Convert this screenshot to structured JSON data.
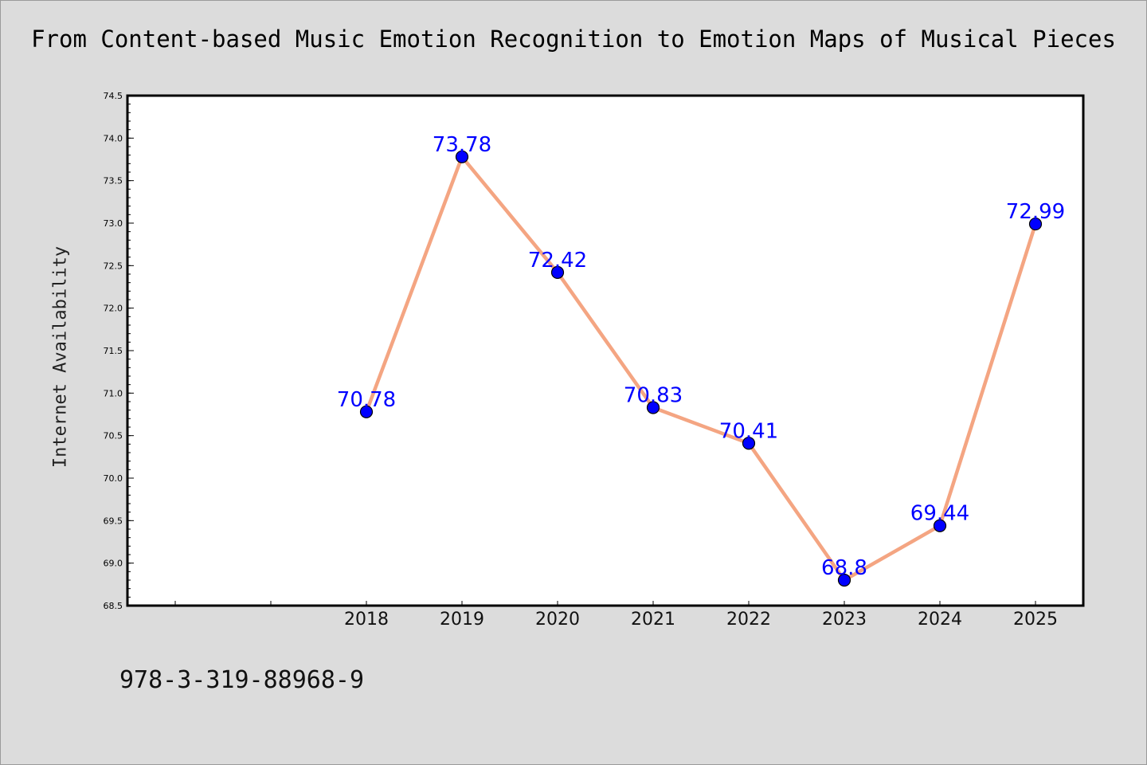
{
  "chart_data": {
    "type": "line",
    "title": "From Content-based Music Emotion Recognition to Emotion Maps of Musical Pieces",
    "xlabel": "",
    "ylabel": "Internet Availability",
    "x": [
      "2018",
      "2019",
      "2020",
      "2021",
      "2022",
      "2023",
      "2024",
      "2025"
    ],
    "values": [
      70.78,
      73.78,
      72.42,
      70.83,
      70.41,
      68.8,
      69.44,
      72.99
    ],
    "point_labels": [
      "70.78",
      "73.78",
      "72.42",
      "70.83",
      "70.41",
      "68.8",
      "69.44",
      "72.99"
    ],
    "x_slots": 10,
    "first_data_slot": 2,
    "ylim": [
      68.5,
      74.5
    ],
    "y_major_step": 0.5,
    "y_minor_step": 0.1,
    "y_ticks": [
      "68.5",
      "69.0",
      "69.5",
      "70.0",
      "70.5",
      "71.0",
      "71.5",
      "72.0",
      "72.5",
      "73.0",
      "73.5",
      "74.0",
      "74.5"
    ],
    "grid": false,
    "legend": "none",
    "line_color": "#f4a582",
    "marker_color": "#0000ff",
    "label_color": "#0000ff",
    "plot_background": "#ffffff",
    "page_background": "#dcdcdc"
  },
  "note": "978-3-319-88968-9"
}
